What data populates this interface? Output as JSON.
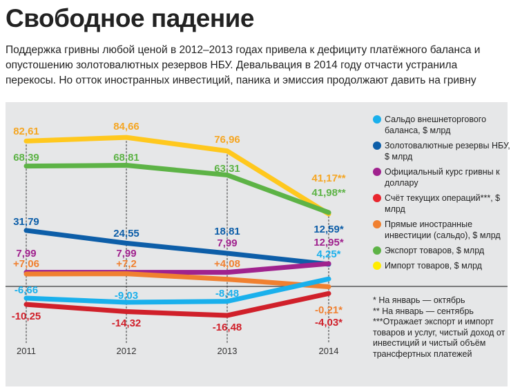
{
  "title": "Свободное падение",
  "subtitle": "Поддержка гривны любой ценой в 2012–2013 годах привела к дефициту платёжного баланса и опустошению золотовалютных резервов НБУ. Девальвация в 2014 году отчасти устранила перекосы. Но отток иностранных инвестиций, паника и эмиссия продолжают давить на гривну",
  "chart_data": {
    "type": "line",
    "categories": [
      "2011",
      "2012",
      "2013",
      "2014"
    ],
    "grid": false,
    "legend_placement": "right",
    "series": [
      {
        "name": "Сальдо внешнеторгового баланса, $ млрд",
        "color": "#1ab0ec",
        "dot": "#1ab0ec",
        "values": [
          -6.66,
          -9.03,
          -8.48,
          4.25
        ],
        "labels": [
          "-6,66",
          "-9,03",
          "-8,48",
          "4,25*"
        ]
      },
      {
        "name": "Золотовалютные резервы НБУ, $ млрд",
        "color": "#0d5ea8",
        "dot": "#0d5ea8",
        "values": [
          31.79,
          24.55,
          18.81,
          12.59
        ],
        "labels": [
          "31,79",
          "24,55",
          "18,81",
          "12,59*"
        ]
      },
      {
        "name": "Официальный курс гривны к доллару",
        "color": "#a0228e",
        "dot": "#a0228e",
        "values": [
          7.99,
          7.99,
          7.99,
          12.95
        ],
        "labels": [
          "7,99",
          "7,99",
          "7,99",
          "12,95*"
        ]
      },
      {
        "name": "Счёт текущих операций***, $ млрд",
        "color": "#d0202a",
        "dot": "#e8262e",
        "values": [
          -10.25,
          -14.32,
          -16.48,
          -4.03
        ],
        "labels": [
          "-10,25",
          "-14,32",
          "-16,48",
          "-4,03*"
        ]
      },
      {
        "name": "Прямые иностранные инвестиции (сальдо), $ млрд",
        "color": "#f08030",
        "dot": "#f08030",
        "values": [
          7.06,
          7.2,
          4.08,
          -0.21
        ],
        "labels": [
          "+7,06",
          "+7,2",
          "+4,08",
          "-0,21*"
        ]
      },
      {
        "name": "Экспорт товаров, $ млрд",
        "color": "#5db346",
        "dot": "#5db346",
        "values": [
          68.39,
          68.81,
          63.31,
          41.98
        ],
        "labels": [
          "68,39",
          "68,81",
          "63,31",
          "41,98**"
        ]
      },
      {
        "name": "Импорт товаров, $ млрд",
        "color": "#ffc81e",
        "dot": "#ffec00",
        "label_color": "#f5a623",
        "values": [
          82.61,
          84.66,
          76.96,
          41.17
        ],
        "labels": [
          "82,61",
          "84,66",
          "76,96",
          "41,17**"
        ]
      }
    ],
    "notes": [
      "* На январь — октябрь",
      "** На январь — сентябрь",
      "***Отражает экспорт и импорт товаров и услуг, чистый доход от инвестиций и чистый объём трансфертных платежей"
    ]
  }
}
